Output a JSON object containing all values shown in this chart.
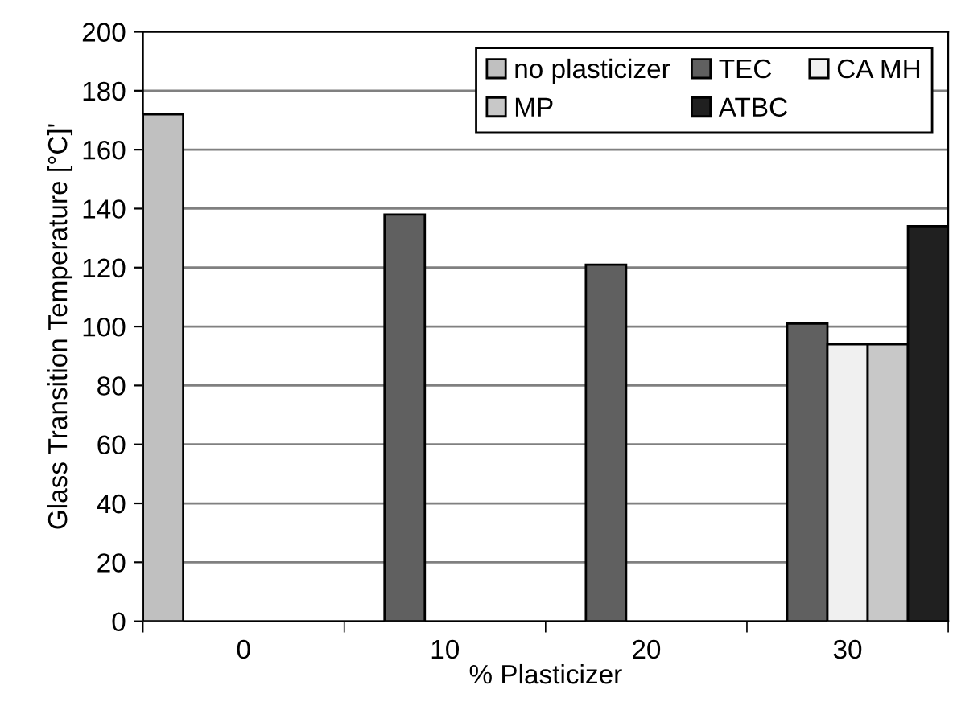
{
  "chart_data": {
    "type": "bar",
    "xlabel": "% Plasticizer",
    "ylabel": "Glass Transition Temperature [°C]'",
    "categories": [
      "0",
      "10",
      "20",
      "30"
    ],
    "series": [
      {
        "name": "no plasticizer",
        "color": "#c0c0c0",
        "values": [
          172,
          null,
          null,
          null
        ]
      },
      {
        "name": "TEC",
        "color": "#606060",
        "values": [
          null,
          138,
          121,
          101
        ]
      },
      {
        "name": "CA MH",
        "color": "#f0f0f0",
        "values": [
          null,
          null,
          null,
          94
        ]
      },
      {
        "name": "MP",
        "color": "#c8c8c8",
        "values": [
          null,
          null,
          null,
          94
        ]
      },
      {
        "name": "ATBC",
        "color": "#202020",
        "values": [
          null,
          null,
          null,
          134
        ]
      }
    ],
    "ylim": [
      0,
      200
    ],
    "yticks": [
      0,
      20,
      40,
      60,
      80,
      100,
      120,
      140,
      160,
      180,
      200
    ],
    "grid": "y",
    "legend": "top right"
  }
}
